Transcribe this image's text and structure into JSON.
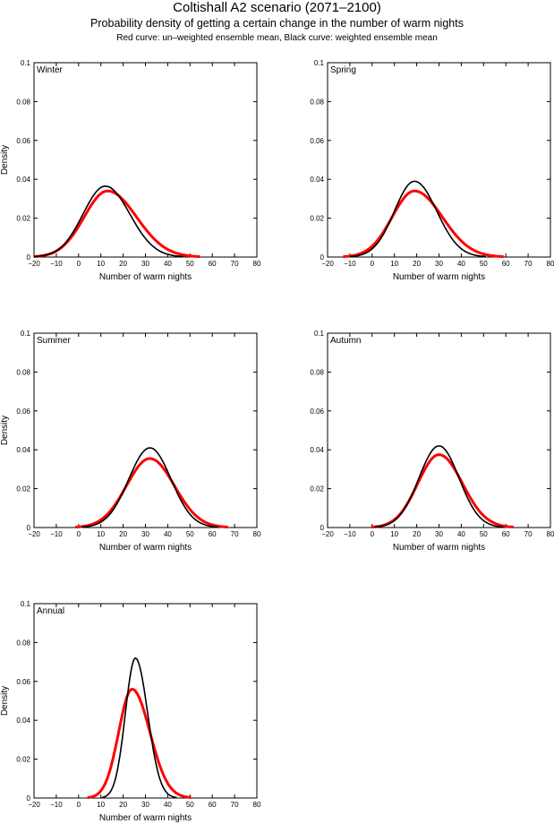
{
  "title": "Coltishall A2 scenario (2071–2100)",
  "subtitle": "Probability density of getting a certain change in the number of warm nights",
  "note": "Red curve: un–weighted ensemble mean, Black curve: weighted ensemble mean",
  "colors": {
    "unweighted": "#ff0000",
    "weighted": "#000000"
  },
  "chart_data": [
    {
      "type": "line",
      "title": "Winter",
      "xlabel": "Number of warm nights",
      "ylabel": "Density",
      "xlim": [
        -20,
        80
      ],
      "ylim": [
        0,
        0.1
      ],
      "xticks": [
        "−20",
        "−10",
        "0",
        "10",
        "20",
        "30",
        "40",
        "50",
        "60",
        "70",
        "80"
      ],
      "yticks": [
        "0",
        "0.02",
        "0.04",
        "0.06",
        "0.08",
        "0.1"
      ],
      "series": [
        {
          "name": "un-weighted ensemble mean",
          "color": "#ff0000",
          "mode": 13,
          "peak": 0.034,
          "sd_left": 10.5,
          "sd_right": 13
        },
        {
          "name": "weighted ensemble mean",
          "color": "#000000",
          "mode": 12,
          "peak": 0.0365,
          "sd_left": 10,
          "sd_right": 11
        }
      ]
    },
    {
      "type": "line",
      "title": "Spring",
      "xlabel": "Number of warm nights",
      "ylabel": "",
      "xlim": [
        -20,
        80
      ],
      "ylim": [
        0,
        0.1
      ],
      "xticks": [
        "−20",
        "−10",
        "0",
        "10",
        "20",
        "30",
        "40",
        "50",
        "60",
        "70",
        "80"
      ],
      "yticks": [
        "0",
        "0.02",
        "0.04",
        "0.06",
        "0.08",
        "0.1"
      ],
      "series": [
        {
          "name": "un-weighted ensemble mean",
          "color": "#ff0000",
          "mode": 19,
          "peak": 0.034,
          "sd_left": 10,
          "sd_right": 12.5
        },
        {
          "name": "weighted ensemble mean",
          "color": "#000000",
          "mode": 19,
          "peak": 0.039,
          "sd_left": 9,
          "sd_right": 10
        }
      ]
    },
    {
      "type": "line",
      "title": "Summer",
      "xlabel": "Number of warm nights",
      "ylabel": "Density",
      "xlim": [
        -20,
        80
      ],
      "ylim": [
        0,
        0.1
      ],
      "xticks": [
        "−20",
        "−10",
        "0",
        "10",
        "20",
        "30",
        "40",
        "50",
        "60",
        "70",
        "80"
      ],
      "yticks": [
        "0",
        "0.02",
        "0.04",
        "0.06",
        "0.08",
        "0.1"
      ],
      "series": [
        {
          "name": "un-weighted ensemble mean",
          "color": "#ff0000",
          "mode": 32,
          "peak": 0.0355,
          "sd_left": 10.5,
          "sd_right": 11
        },
        {
          "name": "weighted ensemble mean",
          "color": "#000000",
          "mode": 32,
          "peak": 0.041,
          "sd_left": 9.5,
          "sd_right": 9.5
        }
      ]
    },
    {
      "type": "line",
      "title": "Autumn",
      "xlabel": "Number of warm nights",
      "ylabel": "",
      "xlim": [
        -20,
        80
      ],
      "ylim": [
        0,
        0.1
      ],
      "xticks": [
        "−20",
        "−10",
        "0",
        "10",
        "20",
        "30",
        "40",
        "50",
        "60",
        "70",
        "80"
      ],
      "yticks": [
        "0",
        "0.02",
        "0.04",
        "0.06",
        "0.08",
        "0.1"
      ],
      "series": [
        {
          "name": "un-weighted ensemble mean",
          "color": "#ff0000",
          "mode": 30,
          "peak": 0.0375,
          "sd_left": 9.5,
          "sd_right": 10.5
        },
        {
          "name": "weighted ensemble mean",
          "color": "#000000",
          "mode": 30,
          "peak": 0.042,
          "sd_left": 9,
          "sd_right": 9
        }
      ]
    },
    {
      "type": "line",
      "title": "Annual",
      "xlabel": "Number of warm nights",
      "ylabel": "Density",
      "xlim": [
        -20,
        80
      ],
      "ylim": [
        0,
        0.1
      ],
      "xticks": [
        "−20",
        "−10",
        "0",
        "10",
        "20",
        "30",
        "40",
        "50",
        "60",
        "70",
        "80"
      ],
      "yticks": [
        "0",
        "0.02",
        "0.04",
        "0.06",
        "0.08",
        "0.1"
      ],
      "series": [
        {
          "name": "un-weighted ensemble mean",
          "color": "#ff0000",
          "mode": 24,
          "peak": 0.056,
          "sd_left": 6,
          "sd_right": 8
        },
        {
          "name": "weighted ensemble mean",
          "color": "#000000",
          "mode": 25.5,
          "peak": 0.072,
          "sd_left": 4.5,
          "sd_right": 5.5
        }
      ]
    }
  ]
}
